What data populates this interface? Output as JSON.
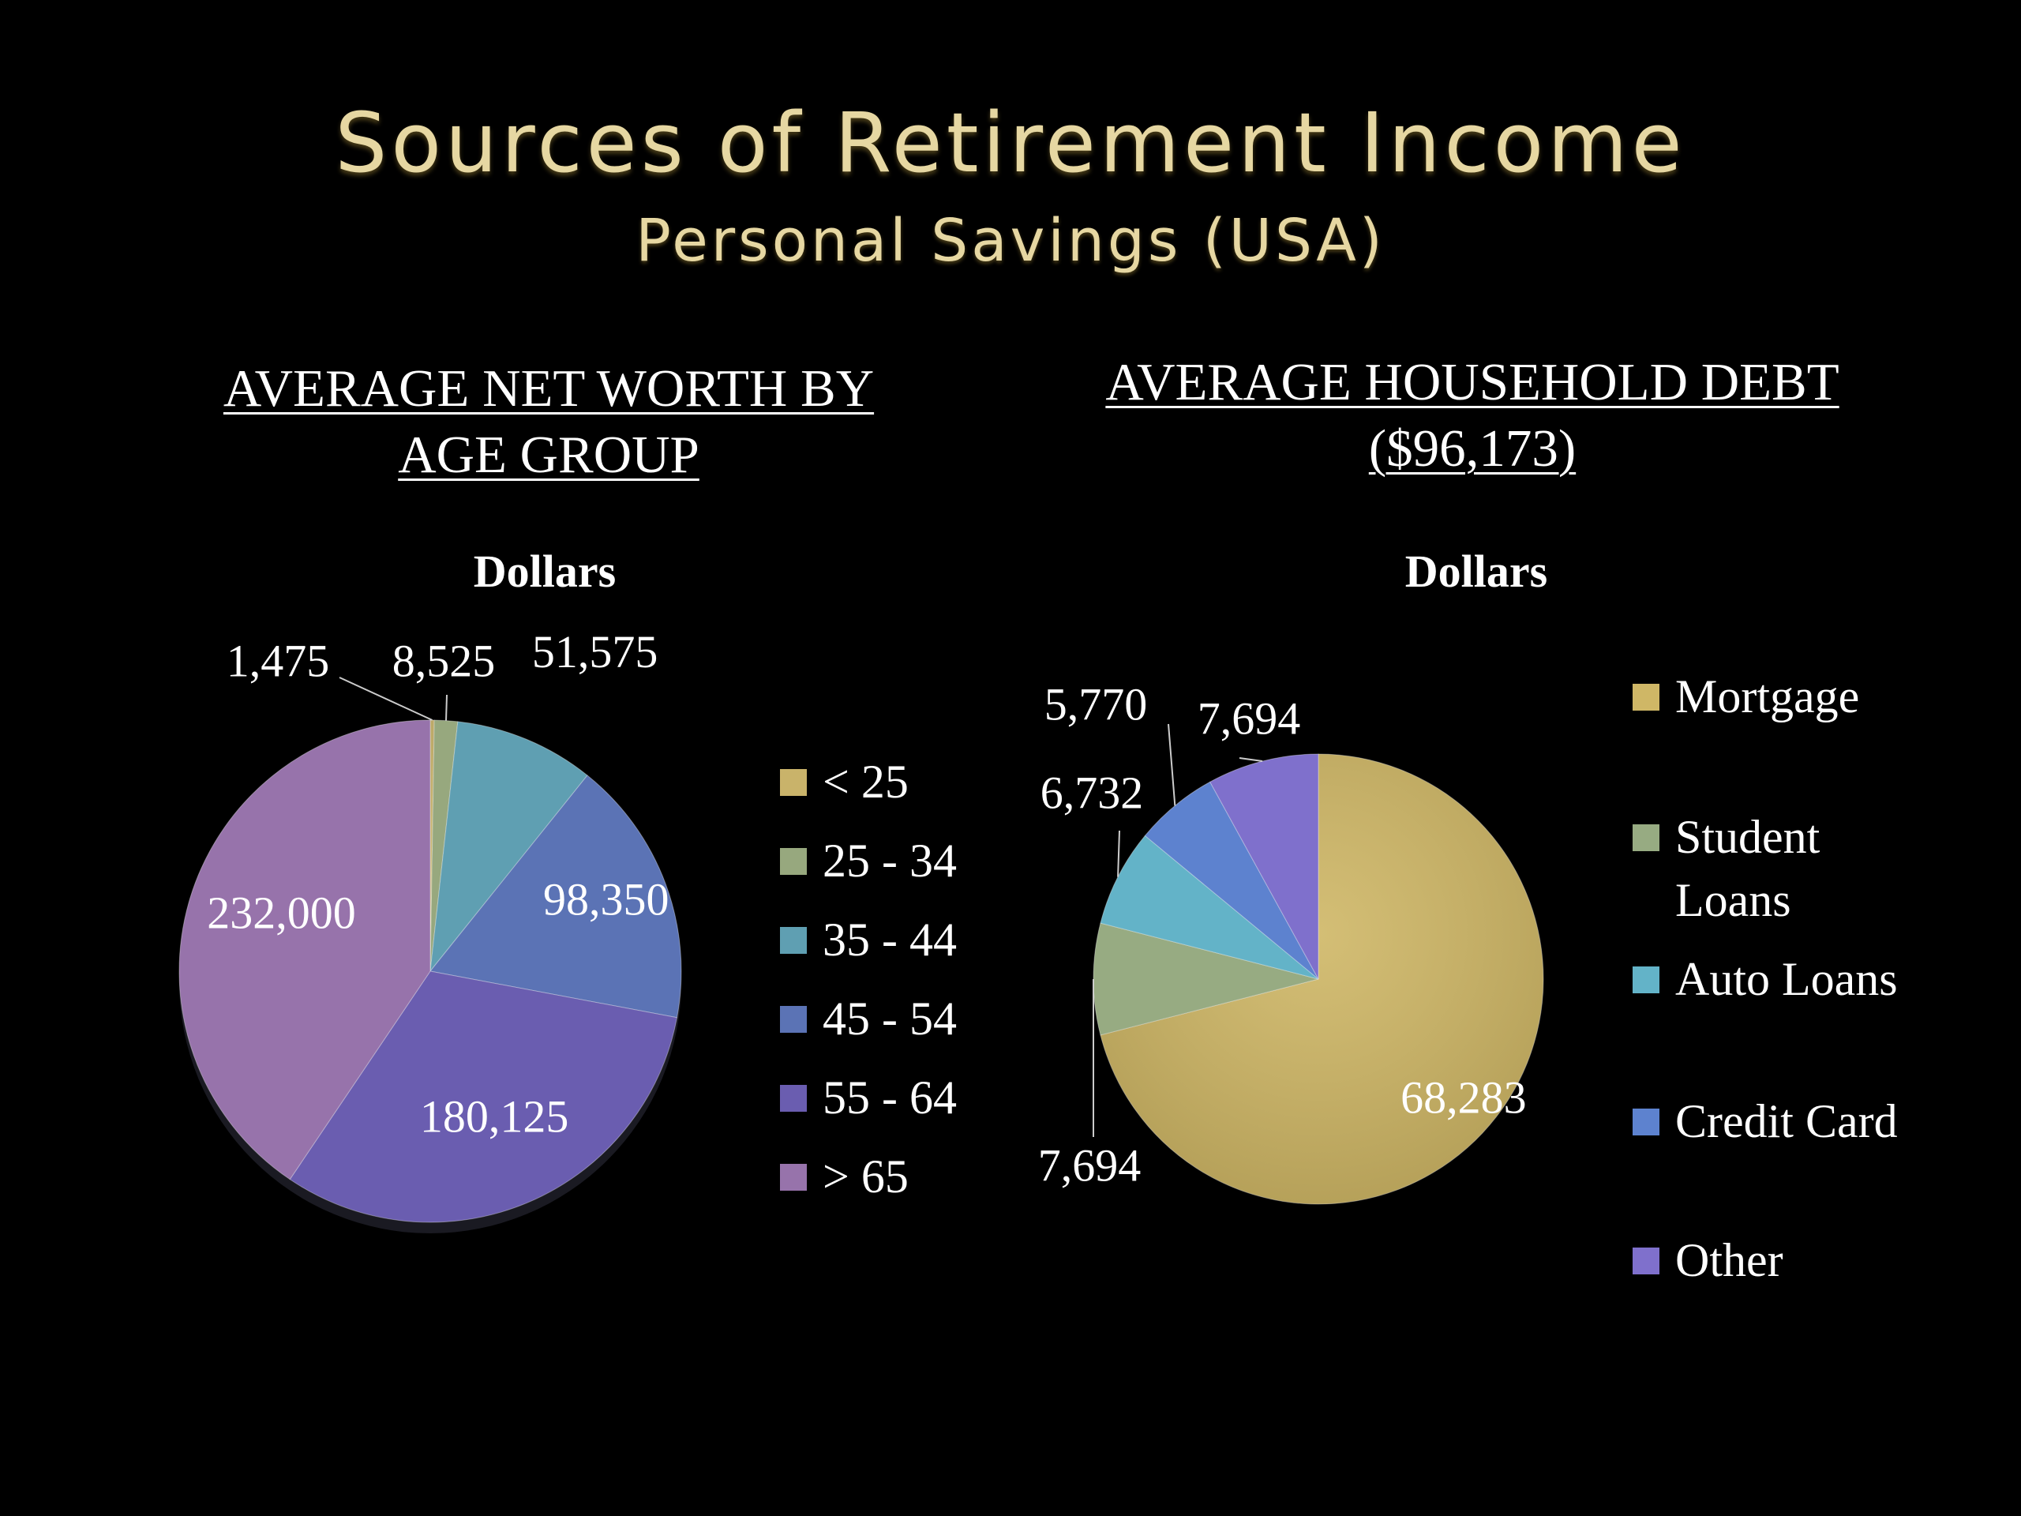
{
  "slide": {
    "title": "Sources of Retirement Income",
    "subtitle": "Personal Savings (USA)"
  },
  "left_panel": {
    "heading_line1": "AVERAGE NET WORTH BY",
    "heading_line2": "AGE GROUP"
  },
  "right_panel": {
    "heading_line1": "AVERAGE HOUSEHOLD DEBT",
    "heading_line2": "($96,173)"
  },
  "chart_data": [
    {
      "type": "pie",
      "title": "Dollars",
      "legend_position": "right",
      "categories": [
        "< 25",
        "25 - 34",
        "35 - 44",
        "45 - 54",
        "55 - 64",
        "> 65"
      ],
      "values": [
        1475,
        8525,
        51575,
        98350,
        180125,
        232000
      ],
      "data_labels": [
        "1,475",
        "8,525",
        "51,575",
        "98,350",
        "180,125",
        "232,000"
      ],
      "colors": [
        "#c9b36a",
        "#97a87e",
        "#5f9fb2",
        "#5b73b5",
        "#6a5db0",
        "#9773ab"
      ]
    },
    {
      "type": "pie",
      "title": "Dollars",
      "legend_position": "right",
      "categories": [
        "Mortgage",
        "Student Loans",
        "Auto Loans",
        "Credit Card",
        "Other"
      ],
      "values": [
        68283,
        7694,
        6732,
        5770,
        7694
      ],
      "data_labels": [
        "68,283",
        "7,694",
        "6,732",
        "5,770",
        "7,694"
      ],
      "colors": [
        "#cfb766",
        "#97ab82",
        "#63b3c8",
        "#5d82cf",
        "#7f70cc"
      ]
    }
  ]
}
